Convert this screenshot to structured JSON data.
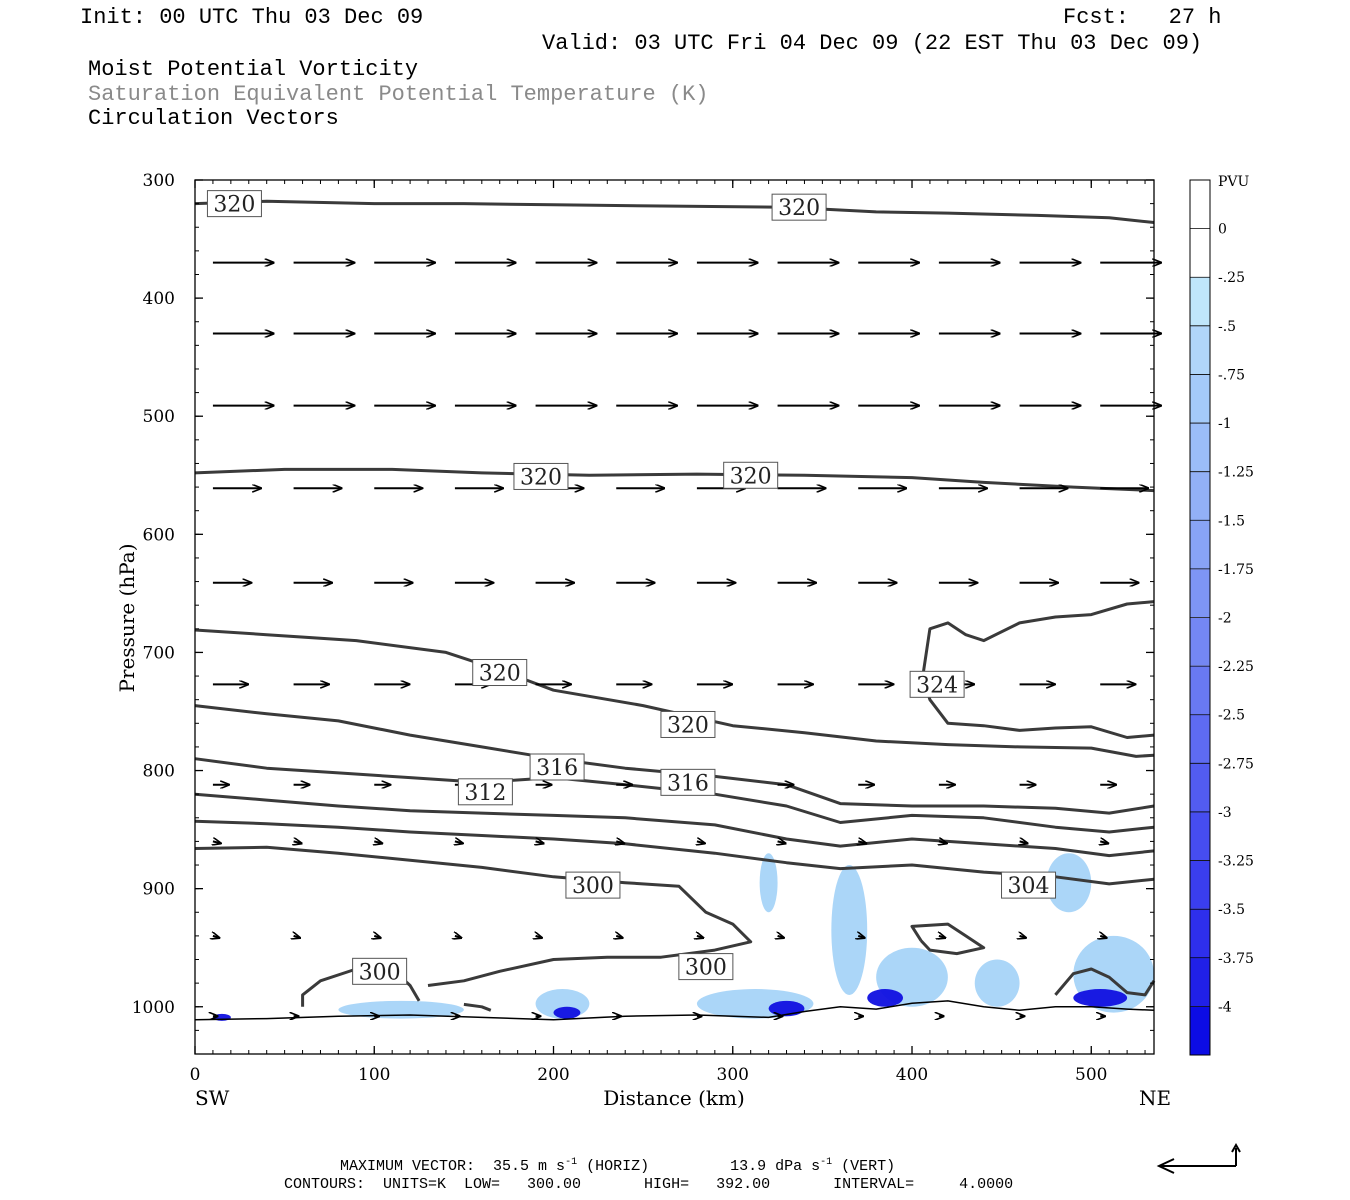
{
  "header": {
    "init": "Init: 00 UTC Thu 03 Dec 09",
    "fcst": "Fcst:   27 h",
    "valid": "Valid: 03 UTC Fri 04 Dec 09 (22 EST Thu 03 Dec 09)",
    "title1": "Moist Potential Vorticity",
    "title2": "Saturation Equivalent Potential Temperature (K)",
    "title3": "Circulation Vectors"
  },
  "footer": {
    "max_vector_label": "MAXIMUM VECTOR:",
    "horiz_value": "35.5 m s",
    "horiz_exp": "-1",
    "horiz_tag": "(HORIZ)",
    "vert_value": "13.9 dPa s",
    "vert_exp": "-1",
    "vert_tag": "(VERT)",
    "contours": "CONTOURS:  UNITS=K  LOW=   300.00       HIGH=   392.00       INTERVAL=     4.0000"
  },
  "colors": {
    "contour": "#3a3a3a",
    "pv_light": "#c4e6fb",
    "pv_mid": "#8fc8f5",
    "pv_strong": "#5a8cf0",
    "pv_max": "#1010e0"
  },
  "chart_data": {
    "type": "cross-section",
    "xlabel": "Distance (km)",
    "ylabel": "Pressure (hPa)",
    "xlim": [
      0,
      535
    ],
    "ylim": [
      1040,
      300
    ],
    "x_ticks": [
      "0",
      "100",
      "200",
      "300",
      "400",
      "500"
    ],
    "x_tick_values": [
      0,
      100,
      200,
      300,
      400,
      500
    ],
    "y_ticks": [
      "300",
      "400",
      "500",
      "600",
      "700",
      "800",
      "900",
      "1000"
    ],
    "y_tick_values": [
      300,
      400,
      500,
      600,
      700,
      800,
      900,
      1000
    ],
    "left_end_label": "SW",
    "right_end_label": "NE",
    "colorbar": {
      "title": "PVU",
      "labels": [
        "0",
        "-.25",
        "-.5",
        "-.75",
        "-1",
        "-1.25",
        "-1.5",
        "-1.75",
        "-2",
        "-2.25",
        "-2.5",
        "-2.75",
        "-3",
        "-3.25",
        "-3.5",
        "-3.75",
        "-4"
      ],
      "colors": [
        "#ffffff",
        "#ffffff",
        "#bfe6fb",
        "#b0d6fa",
        "#a4caf9",
        "#9bbdf8",
        "#92b0f7",
        "#88a3f6",
        "#7e95f5",
        "#7487f4",
        "#6979f3",
        "#5e6bf2",
        "#525cf1",
        "#464df0",
        "#3a3eee",
        "#2e2fec",
        "#2020e8",
        "#0c0ce4"
      ]
    },
    "contour_labels": [
      {
        "text": "320",
        "x": 22,
        "p": 320
      },
      {
        "text": "320",
        "x": 337,
        "p": 323
      },
      {
        "text": "320",
        "x": 193,
        "p": 551
      },
      {
        "text": "320",
        "x": 310,
        "p": 550
      },
      {
        "text": "320",
        "x": 170,
        "p": 717
      },
      {
        "text": "324",
        "x": 414,
        "p": 727
      },
      {
        "text": "320",
        "x": 275,
        "p": 761
      },
      {
        "text": "316",
        "x": 202,
        "p": 797
      },
      {
        "text": "316",
        "x": 275,
        "p": 810
      },
      {
        "text": "312",
        "x": 162,
        "p": 818
      },
      {
        "text": "300",
        "x": 222,
        "p": 897
      },
      {
        "text": "304",
        "x": 465,
        "p": 897
      },
      {
        "text": "300",
        "x": 103,
        "p": 970
      },
      {
        "text": "300",
        "x": 285,
        "p": 966
      }
    ],
    "contours": [
      {
        "name": "theta-320-top",
        "pts": [
          [
            0,
            320
          ],
          [
            40,
            318
          ],
          [
            100,
            320
          ],
          [
            150,
            320
          ],
          [
            200,
            321
          ],
          [
            260,
            322
          ],
          [
            330,
            323
          ],
          [
            380,
            327
          ],
          [
            420,
            328
          ],
          [
            470,
            330
          ],
          [
            510,
            332
          ],
          [
            535,
            336
          ]
        ]
      },
      {
        "name": "theta-320-mid",
        "pts": [
          [
            0,
            548
          ],
          [
            50,
            545
          ],
          [
            110,
            545
          ],
          [
            160,
            548
          ],
          [
            220,
            550
          ],
          [
            280,
            549
          ],
          [
            340,
            550
          ],
          [
            400,
            552
          ],
          [
            440,
            556
          ],
          [
            490,
            560
          ],
          [
            535,
            563
          ]
        ]
      },
      {
        "name": "theta-320-low",
        "pts": [
          [
            0,
            681
          ],
          [
            40,
            685
          ],
          [
            90,
            690
          ],
          [
            140,
            700
          ],
          [
            170,
            715
          ],
          [
            200,
            732
          ],
          [
            250,
            745
          ],
          [
            300,
            762
          ],
          [
            340,
            768
          ],
          [
            380,
            775
          ],
          [
            420,
            778
          ],
          [
            460,
            780
          ],
          [
            500,
            781
          ],
          [
            525,
            788
          ],
          [
            535,
            787
          ]
        ]
      },
      {
        "name": "theta-324-dome",
        "pts": [
          [
            535,
            657
          ],
          [
            520,
            659
          ],
          [
            500,
            668
          ],
          [
            480,
            670
          ],
          [
            460,
            675
          ],
          [
            440,
            690
          ],
          [
            430,
            685
          ],
          [
            420,
            675
          ],
          [
            410,
            680
          ],
          [
            406,
            720
          ],
          [
            410,
            740
          ],
          [
            420,
            760
          ],
          [
            440,
            762
          ],
          [
            460,
            766
          ],
          [
            480,
            764
          ],
          [
            500,
            763
          ],
          [
            520,
            772
          ],
          [
            535,
            770
          ]
        ]
      },
      {
        "name": "theta-316",
        "pts": [
          [
            0,
            745
          ],
          [
            40,
            752
          ],
          [
            80,
            758
          ],
          [
            120,
            770
          ],
          [
            160,
            780
          ],
          [
            200,
            790
          ],
          [
            240,
            798
          ],
          [
            290,
            805
          ],
          [
            330,
            812
          ],
          [
            360,
            828
          ],
          [
            400,
            830
          ],
          [
            440,
            830
          ],
          [
            480,
            832
          ],
          [
            510,
            836
          ],
          [
            535,
            830
          ]
        ]
      },
      {
        "name": "theta-312",
        "pts": [
          [
            0,
            790
          ],
          [
            40,
            798
          ],
          [
            80,
            802
          ],
          [
            120,
            806
          ],
          [
            160,
            810
          ],
          [
            200,
            806
          ],
          [
            240,
            812
          ],
          [
            290,
            820
          ],
          [
            330,
            830
          ],
          [
            360,
            844
          ],
          [
            400,
            838
          ],
          [
            440,
            840
          ],
          [
            480,
            848
          ],
          [
            510,
            852
          ],
          [
            535,
            848
          ]
        ]
      },
      {
        "name": "theta-308",
        "pts": [
          [
            0,
            820
          ],
          [
            40,
            825
          ],
          [
            80,
            830
          ],
          [
            120,
            834
          ],
          [
            160,
            836
          ],
          [
            200,
            838
          ],
          [
            240,
            840
          ],
          [
            290,
            846
          ],
          [
            330,
            858
          ],
          [
            360,
            864
          ],
          [
            400,
            858
          ],
          [
            440,
            862
          ],
          [
            480,
            866
          ],
          [
            510,
            872
          ],
          [
            535,
            868
          ]
        ]
      },
      {
        "name": "theta-304",
        "pts": [
          [
            0,
            843
          ],
          [
            40,
            845
          ],
          [
            80,
            848
          ],
          [
            120,
            852
          ],
          [
            160,
            855
          ],
          [
            200,
            858
          ],
          [
            240,
            862
          ],
          [
            290,
            870
          ],
          [
            330,
            878
          ],
          [
            360,
            883
          ],
          [
            400,
            880
          ],
          [
            440,
            886
          ],
          [
            480,
            890
          ],
          [
            510,
            896
          ],
          [
            535,
            892
          ]
        ]
      },
      {
        "name": "theta-300",
        "pts": [
          [
            0,
            866
          ],
          [
            40,
            865
          ],
          [
            80,
            870
          ],
          [
            120,
            876
          ],
          [
            160,
            882
          ],
          [
            200,
            890
          ],
          [
            240,
            895
          ],
          [
            270,
            898
          ],
          [
            285,
            920
          ],
          [
            300,
            930
          ],
          [
            310,
            945
          ],
          [
            290,
            952
          ],
          [
            260,
            958
          ],
          [
            230,
            958
          ],
          [
            200,
            960
          ],
          [
            170,
            970
          ],
          [
            150,
            978
          ],
          [
            130,
            982
          ]
        ]
      },
      {
        "name": "theta-300-left",
        "pts": [
          [
            60,
            1000
          ],
          [
            60,
            990
          ],
          [
            70,
            978
          ],
          [
            90,
            968
          ],
          [
            110,
            968
          ],
          [
            120,
            982
          ],
          [
            125,
            995
          ]
        ]
      },
      {
        "name": "theta-300-loop",
        "pts": [
          [
            150,
            998
          ],
          [
            160,
            1000
          ],
          [
            165,
            1003
          ]
        ]
      },
      {
        "name": "theta-304-right",
        "pts": [
          [
            480,
            990
          ],
          [
            490,
            972
          ],
          [
            500,
            968
          ],
          [
            510,
            975
          ],
          [
            520,
            988
          ],
          [
            530,
            990
          ],
          [
            535,
            978
          ]
        ]
      },
      {
        "name": "theta-closed",
        "pts": [
          [
            405,
            944
          ],
          [
            400,
            932
          ],
          [
            420,
            930
          ],
          [
            430,
            940
          ],
          [
            440,
            950
          ],
          [
            425,
            955
          ],
          [
            410,
            952
          ],
          [
            405,
            944
          ]
        ]
      }
    ],
    "terrain": [
      [
        0,
        1011
      ],
      [
        40,
        1010
      ],
      [
        80,
        1008
      ],
      [
        120,
        1007
      ],
      [
        160,
        1009
      ],
      [
        200,
        1011
      ],
      [
        240,
        1008
      ],
      [
        280,
        1007
      ],
      [
        320,
        1009
      ],
      [
        340,
        1004
      ],
      [
        360,
        1000
      ],
      [
        380,
        1002
      ],
      [
        400,
        997
      ],
      [
        420,
        995
      ],
      [
        440,
        1000
      ],
      [
        460,
        1003
      ],
      [
        480,
        1000
      ],
      [
        500,
        1000
      ],
      [
        520,
        1002
      ],
      [
        535,
        1003
      ]
    ],
    "pv_shading": [
      {
        "level": "light",
        "x": [
          315,
          325
        ],
        "p": [
          870,
          920
        ]
      },
      {
        "level": "light",
        "x": [
          355,
          375
        ],
        "p": [
          880,
          990
        ]
      },
      {
        "level": "light",
        "x": [
          380,
          420
        ],
        "p": [
          950,
          1000
        ]
      },
      {
        "level": "light",
        "x": [
          435,
          460
        ],
        "p": [
          960,
          1000
        ]
      },
      {
        "level": "light",
        "x": [
          475,
          500
        ],
        "p": [
          870,
          920
        ]
      },
      {
        "level": "light",
        "x": [
          490,
          535
        ],
        "p": [
          940,
          1005
        ]
      },
      {
        "level": "light",
        "x": [
          190,
          220
        ],
        "p": [
          985,
          1010
        ]
      },
      {
        "level": "light",
        "x": [
          280,
          345
        ],
        "p": [
          985,
          1010
        ]
      },
      {
        "level": "light",
        "x": [
          80,
          150
        ],
        "p": [
          995,
          1010
        ]
      },
      {
        "level": "max",
        "x": [
          375,
          395
        ],
        "p": [
          985,
          1000
        ]
      },
      {
        "level": "max",
        "x": [
          200,
          215
        ],
        "p": [
          1000,
          1010
        ]
      },
      {
        "level": "max",
        "x": [
          320,
          340
        ],
        "p": [
          995,
          1008
        ]
      },
      {
        "level": "max",
        "x": [
          490,
          520
        ],
        "p": [
          985,
          1000
        ]
      },
      {
        "level": "max",
        "x": [
          10,
          20
        ],
        "p": [
          1006,
          1012
        ]
      }
    ],
    "vector_rows": [
      {
        "p": 370,
        "dx": 38,
        "dy": 0
      },
      {
        "p": 430,
        "dx": 38,
        "dy": 0
      },
      {
        "p": 491,
        "dx": 38,
        "dy": 0
      },
      {
        "p": 561,
        "dx": 30,
        "dy": 0
      },
      {
        "p": 641,
        "dx": 24,
        "dy": 0
      },
      {
        "p": 727,
        "dx": 22,
        "dy": 0
      },
      {
        "p": 812,
        "dx": 10,
        "dy": 0
      },
      {
        "p": 860,
        "dx": 5,
        "dy": 1
      },
      {
        "p": 940,
        "dx": 4,
        "dy": 1
      },
      {
        "p": 1008,
        "dx": 3,
        "dy": 0
      }
    ],
    "vector_columns_km": [
      10,
      55,
      100,
      145,
      190,
      235,
      280,
      325,
      370,
      415,
      460,
      505
    ]
  }
}
